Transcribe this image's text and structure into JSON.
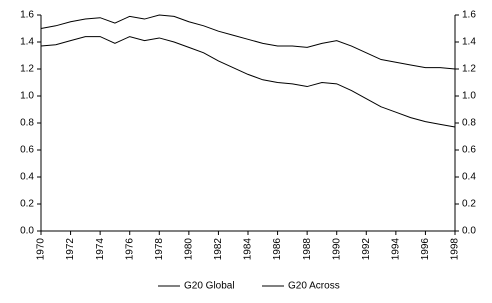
{
  "chart_data": {
    "type": "line",
    "x": [
      1970,
      1971,
      1972,
      1973,
      1974,
      1975,
      1976,
      1977,
      1978,
      1979,
      1980,
      1981,
      1982,
      1983,
      1984,
      1985,
      1986,
      1987,
      1988,
      1989,
      1990,
      1991,
      1992,
      1993,
      1994,
      1995,
      1996,
      1997,
      1998
    ],
    "series": [
      {
        "name": "G20 Global",
        "color": "#000000",
        "values": [
          1.5,
          1.52,
          1.55,
          1.57,
          1.58,
          1.54,
          1.59,
          1.57,
          1.6,
          1.59,
          1.55,
          1.52,
          1.48,
          1.45,
          1.42,
          1.39,
          1.37,
          1.37,
          1.36,
          1.39,
          1.41,
          1.37,
          1.32,
          1.27,
          1.25,
          1.23,
          1.21,
          1.21,
          1.2
        ]
      },
      {
        "name": "G20 Across",
        "color": "#000000",
        "values": [
          1.37,
          1.38,
          1.41,
          1.44,
          1.44,
          1.39,
          1.44,
          1.41,
          1.43,
          1.4,
          1.36,
          1.32,
          1.26,
          1.21,
          1.16,
          1.12,
          1.1,
          1.09,
          1.07,
          1.1,
          1.09,
          1.04,
          0.98,
          0.92,
          0.88,
          0.84,
          0.81,
          0.79,
          0.77
        ]
      }
    ],
    "xlim": [
      1970,
      1998
    ],
    "xticks": [
      1970,
      1972,
      1974,
      1976,
      1978,
      1980,
      1982,
      1984,
      1986,
      1988,
      1990,
      1992,
      1994,
      1996,
      1998
    ],
    "ylim": [
      0,
      1.6
    ],
    "yticks": [
      {
        "value": 0,
        "label": "0.0"
      },
      {
        "value": 0.2,
        "label": "0.2"
      },
      {
        "value": 0.4,
        "label": "0.4"
      },
      {
        "value": 0.6,
        "label": "0.6"
      },
      {
        "value": 0.8,
        "label": "0.8"
      },
      {
        "value": 1,
        "label": "1.0"
      },
      {
        "value": 1.2,
        "label": "1.2"
      },
      {
        "value": 1.4,
        "label": "1.4"
      },
      {
        "value": 1.6,
        "label": "1.6"
      }
    ],
    "y2lim": [
      0,
      1.6
    ],
    "y2ticks": [
      {
        "value": 0,
        "label": "0.0"
      },
      {
        "value": 0.2,
        "label": "0.2"
      },
      {
        "value": 0.4,
        "label": "0.4"
      },
      {
        "value": 0.6,
        "label": "0.6"
      },
      {
        "value": 0.8,
        "label": "0.8"
      },
      {
        "value": 1,
        "label": "1.0"
      },
      {
        "value": 1.2,
        "label": "1.2"
      },
      {
        "value": 1.4,
        "label": "1.4"
      },
      {
        "value": 1.6,
        "label": "1.6"
      }
    ],
    "legend": "bottom"
  }
}
